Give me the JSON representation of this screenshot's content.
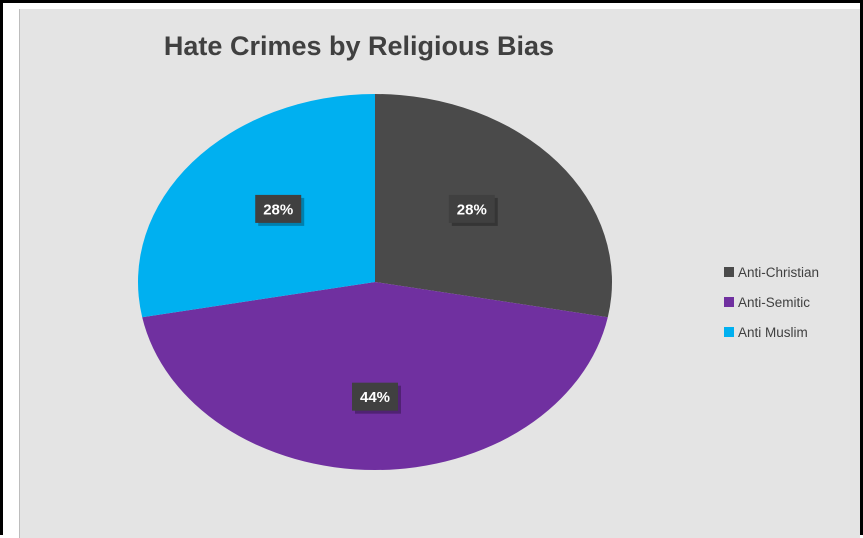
{
  "chart_data": {
    "type": "pie",
    "title": "Hate Crimes by Religious Bias",
    "categories": [
      "Anti-Christian",
      "Anti-Semitic",
      "Anti Muslim"
    ],
    "values": [
      28,
      44,
      28
    ],
    "data_labels": [
      "28%",
      "44%",
      "28%"
    ],
    "colors": [
      "#4a4a4a",
      "#7030a0",
      "#00b0f0"
    ],
    "legend_position": "right",
    "start": "top, clockwise"
  }
}
